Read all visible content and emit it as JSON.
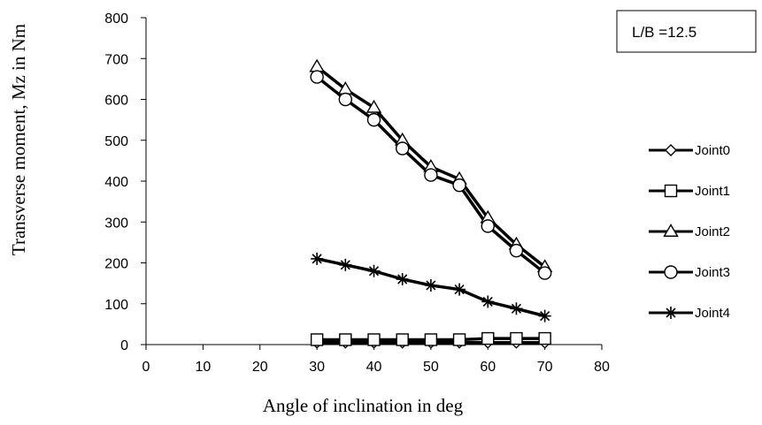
{
  "chart_data": {
    "type": "line",
    "title": "",
    "xlabel": "Angle of inclination in deg",
    "ylabel": "Transverse moment, Mz in Nm",
    "xlim": [
      0,
      80
    ],
    "ylim": [
      0,
      800
    ],
    "xticks": [
      0,
      10,
      20,
      30,
      40,
      50,
      60,
      70,
      80
    ],
    "yticks": [
      0,
      100,
      200,
      300,
      400,
      500,
      600,
      700,
      800
    ],
    "grid": false,
    "legend_position": "right",
    "annotation": "L/B =12.5",
    "x": [
      30,
      35,
      40,
      45,
      50,
      55,
      60,
      65,
      70
    ],
    "series": [
      {
        "name": "Joint0",
        "marker": "diamond",
        "values": [
          5,
          5,
          5,
          5,
          5,
          5,
          5,
          5,
          5
        ]
      },
      {
        "name": "Joint1",
        "marker": "square",
        "values": [
          12,
          12,
          12,
          12,
          12,
          12,
          15,
          15,
          15
        ]
      },
      {
        "name": "Joint2",
        "marker": "triangle",
        "values": [
          680,
          625,
          580,
          500,
          435,
          405,
          310,
          245,
          190
        ]
      },
      {
        "name": "Joint3",
        "marker": "circle",
        "values": [
          655,
          600,
          550,
          480,
          415,
          390,
          290,
          230,
          175
        ]
      },
      {
        "name": "Joint4",
        "marker": "star",
        "values": [
          210,
          195,
          180,
          160,
          145,
          135,
          105,
          88,
          70
        ]
      }
    ],
    "line_color": "#000000"
  }
}
